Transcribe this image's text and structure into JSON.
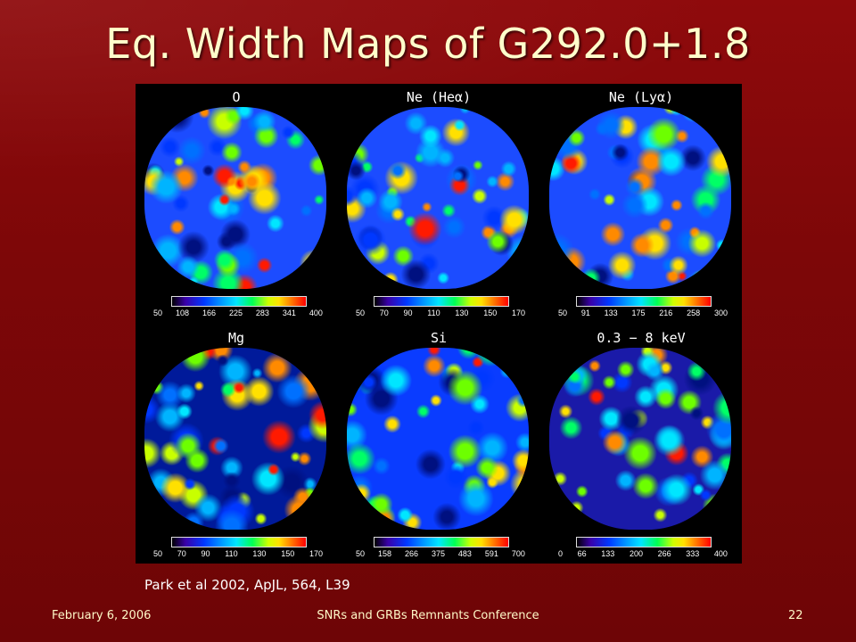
{
  "slide": {
    "title": "Eq. Width Maps of G292.0+1.8",
    "citation": "Park et al 2002, ApJL, 564, L39",
    "footer": {
      "date": "February 6, 2006",
      "event": "SNRs and GRBs Remnants Conference",
      "page": "22"
    }
  },
  "panels": [
    {
      "label": "O",
      "ticks": [
        "50",
        "108",
        "166",
        "225",
        "283",
        "341",
        "400"
      ],
      "base_color": "#1c4cff"
    },
    {
      "label": "Ne (Heα)",
      "ticks": [
        "50",
        "70",
        "90",
        "110",
        "130",
        "150",
        "170"
      ],
      "base_color": "#1c4cff"
    },
    {
      "label": "Ne (Lyα)",
      "ticks": [
        "50",
        "91",
        "133",
        "175",
        "216",
        "258",
        "300"
      ],
      "base_color": "#1c4cff"
    },
    {
      "label": "Mg",
      "ticks": [
        "50",
        "70",
        "90",
        "110",
        "130",
        "150",
        "170"
      ],
      "base_color": "#001a9a"
    },
    {
      "label": "Si",
      "ticks": [
        "50",
        "158",
        "266",
        "375",
        "483",
        "591",
        "700"
      ],
      "base_color": "#0a3cff"
    },
    {
      "label": "0.3 − 8 keV",
      "ticks": [
        "0",
        "66",
        "133",
        "200",
        "266",
        "333",
        "400"
      ],
      "base_color": "#1a1aa8"
    }
  ]
}
